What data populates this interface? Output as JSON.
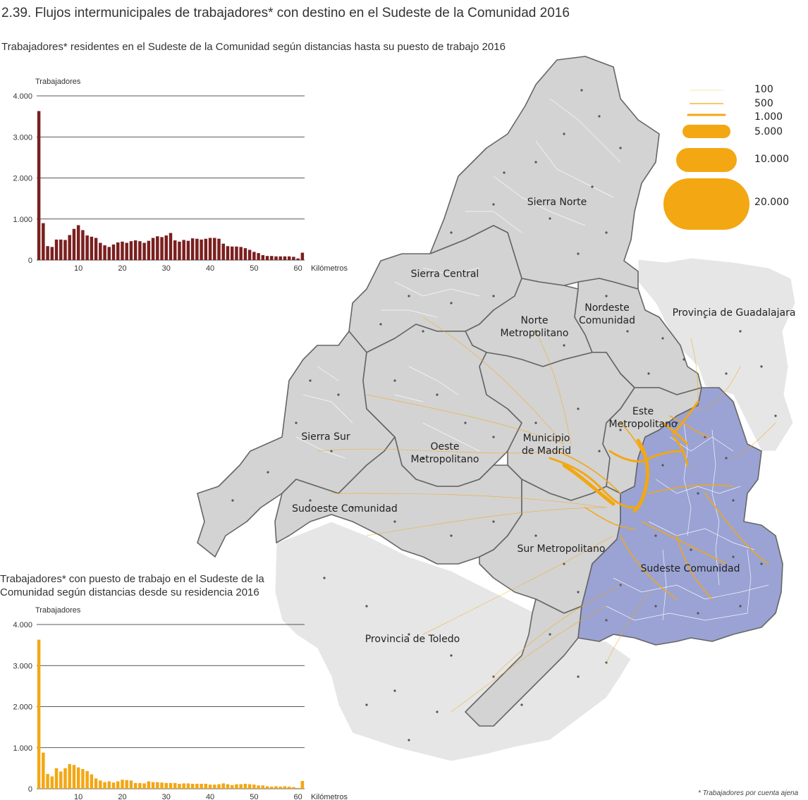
{
  "title": "2.39. Flujos intermunicipales de trabajadores* con destino en el Sudeste de la Comunidad 2016",
  "subtitle_top_chart": "Trabajadores* residentes en el Sudeste de la Comunidad según distancias hasta su puesto de trabajo 2016",
  "subtitle_bottom_chart": "Trabajadores* con puesto de trabajo en el  Sudeste de la Comunidad según distancias desde su residencia 2016",
  "footnote": "* Trabajadores por cuenta ajena",
  "colors": {
    "region_fill": "#d3d3d3",
    "outside_fill": "#e6e6e6",
    "highlight_fill": "#9aa3d4",
    "flow": "#f3a712",
    "bar_top": "#7a1f1f",
    "bar_bottom": "#f3a712"
  },
  "map": {
    "region_labels": [
      {
        "id": "sierra-norte",
        "lines": [
          "Sierra Norte"
        ]
      },
      {
        "id": "sierra-central",
        "lines": [
          "Sierra Central"
        ]
      },
      {
        "id": "norte-metropolitano",
        "lines": [
          "Norte",
          "Metropolitano"
        ]
      },
      {
        "id": "nordeste-comunidad",
        "lines": [
          "Nordeste",
          "Comunidad"
        ]
      },
      {
        "id": "provincia-guadalajara",
        "lines": [
          "Provincia de Guadalajara"
        ]
      },
      {
        "id": "este-metropolitano",
        "lines": [
          "Este",
          "Metropolitano"
        ]
      },
      {
        "id": "sierra-sur",
        "lines": [
          "Sierra Sur"
        ]
      },
      {
        "id": "oeste-metropolitano",
        "lines": [
          "Oeste",
          "Metropolitano"
        ]
      },
      {
        "id": "municipio-madrid",
        "lines": [
          "Municipio",
          "de Madrid"
        ]
      },
      {
        "id": "sudoeste-comunidad",
        "lines": [
          "Sudoeste Comunidad"
        ]
      },
      {
        "id": "sur-metropolitano",
        "lines": [
          "Sur Metropolitano"
        ]
      },
      {
        "id": "sudeste-comunidad",
        "lines": [
          "Sudeste Comunidad"
        ]
      },
      {
        "id": "provincia-toledo",
        "lines": [
          "Provincia de Toledo"
        ]
      }
    ],
    "legend": [
      {
        "label": "100",
        "value": 100
      },
      {
        "label": "500",
        "value": 500
      },
      {
        "label": "1.000",
        "value": 1000
      },
      {
        "label": "5.000",
        "value": 5000
      },
      {
        "label": "10.000",
        "value": 10000
      },
      {
        "label": "20.000",
        "value": 20000
      }
    ]
  },
  "chart_data": [
    {
      "type": "bar",
      "title": "Trabajadores* residentes en el Sudeste de la Comunidad según distancias hasta su puesto de trabajo 2016",
      "ylabel": "Trabajadores",
      "xlabel": "Kilómetros",
      "ylim": [
        0,
        4000
      ],
      "yticks": [
        "0",
        "1.000",
        "2.000",
        "3.000",
        "4.000"
      ],
      "xticks": [
        "10",
        "20",
        "30",
        "40",
        "50",
        "60"
      ],
      "x": [
        1,
        2,
        3,
        4,
        5,
        6,
        7,
        8,
        9,
        10,
        11,
        12,
        13,
        14,
        15,
        16,
        17,
        18,
        19,
        20,
        21,
        22,
        23,
        24,
        25,
        26,
        27,
        28,
        29,
        30,
        31,
        32,
        33,
        34,
        35,
        36,
        37,
        38,
        39,
        40,
        41,
        42,
        43,
        44,
        45,
        46,
        47,
        48,
        49,
        50,
        51,
        52,
        53,
        54,
        55,
        56,
        57,
        58,
        59,
        60,
        61
      ],
      "values": [
        3630,
        900,
        340,
        320,
        500,
        500,
        490,
        610,
        760,
        850,
        730,
        600,
        570,
        540,
        420,
        360,
        320,
        380,
        430,
        450,
        420,
        460,
        480,
        460,
        420,
        470,
        540,
        580,
        560,
        600,
        660,
        480,
        450,
        490,
        470,
        530,
        520,
        500,
        520,
        540,
        540,
        520,
        400,
        340,
        330,
        330,
        320,
        290,
        250,
        200,
        170,
        120,
        100,
        100,
        90,
        90,
        90,
        90,
        80,
        40,
        180
      ]
    },
    {
      "type": "bar",
      "title": "Trabajadores* con puesto de trabajo en el  Sudeste de la Comunidad según distancias desde su residencia 2016",
      "ylabel": "Trabajadores",
      "xlabel": "Kilómetros",
      "ylim": [
        0,
        4000
      ],
      "yticks": [
        "0",
        "1.000",
        "2.000",
        "3.000",
        "4.000"
      ],
      "xticks": [
        "10",
        "20",
        "30",
        "40",
        "50",
        "60"
      ],
      "x": [
        1,
        2,
        3,
        4,
        5,
        6,
        7,
        8,
        9,
        10,
        11,
        12,
        13,
        14,
        15,
        16,
        17,
        18,
        19,
        20,
        21,
        22,
        23,
        24,
        25,
        26,
        27,
        28,
        29,
        30,
        31,
        32,
        33,
        34,
        35,
        36,
        37,
        38,
        39,
        40,
        41,
        42,
        43,
        44,
        45,
        46,
        47,
        48,
        49,
        50,
        51,
        52,
        53,
        54,
        55,
        56,
        57,
        58,
        59,
        60,
        61
      ],
      "values": [
        3630,
        880,
        360,
        300,
        500,
        420,
        500,
        600,
        580,
        520,
        480,
        430,
        350,
        250,
        200,
        160,
        180,
        150,
        180,
        220,
        210,
        200,
        140,
        140,
        130,
        180,
        160,
        160,
        150,
        140,
        140,
        140,
        120,
        130,
        130,
        120,
        120,
        120,
        120,
        100,
        100,
        110,
        130,
        110,
        90,
        110,
        110,
        120,
        110,
        100,
        80,
        80,
        60,
        50,
        60,
        50,
        60,
        50,
        40,
        20,
        190
      ]
    }
  ]
}
